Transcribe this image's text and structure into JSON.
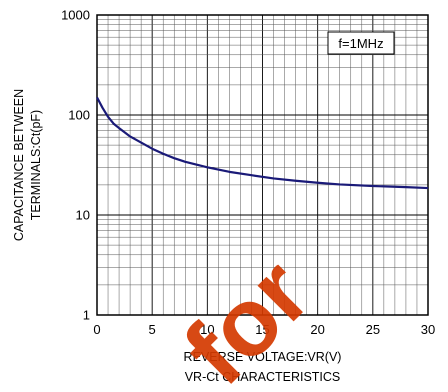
{
  "chart_data": {
    "type": "line",
    "title": "VR-Ct CHARACTERISTICS",
    "xlabel": "REVERSE VOLTAGE:VR(V)",
    "ylabel_lines": [
      "CAPACITANCE BETWEEN",
      "TERMINALS:Ct(pF)"
    ],
    "x_ticks": [
      "0",
      "5",
      "10",
      "15",
      "20",
      "25",
      "30"
    ],
    "y_ticks": [
      "1",
      "10",
      "100",
      "1000"
    ],
    "xlim": [
      0,
      30
    ],
    "ylim": [
      1,
      1000
    ],
    "y_scale": "log",
    "grid": true,
    "annotation": "f=1MHz",
    "series_color": "#1a1a78",
    "series": [
      {
        "x": [
          0,
          0.5,
          1,
          1.5,
          2,
          3,
          4,
          5,
          6,
          7,
          8,
          10,
          12,
          14,
          16,
          18,
          20,
          22,
          25,
          28,
          30
        ],
        "values": [
          150,
          118,
          96,
          82,
          74,
          61,
          53,
          46,
          41,
          37,
          34,
          30,
          27,
          25,
          23.2,
          22,
          21,
          20.2,
          19.5,
          19,
          18.6
        ]
      }
    ]
  },
  "watermark": {
    "text": "for",
    "color": "#d43a00"
  }
}
